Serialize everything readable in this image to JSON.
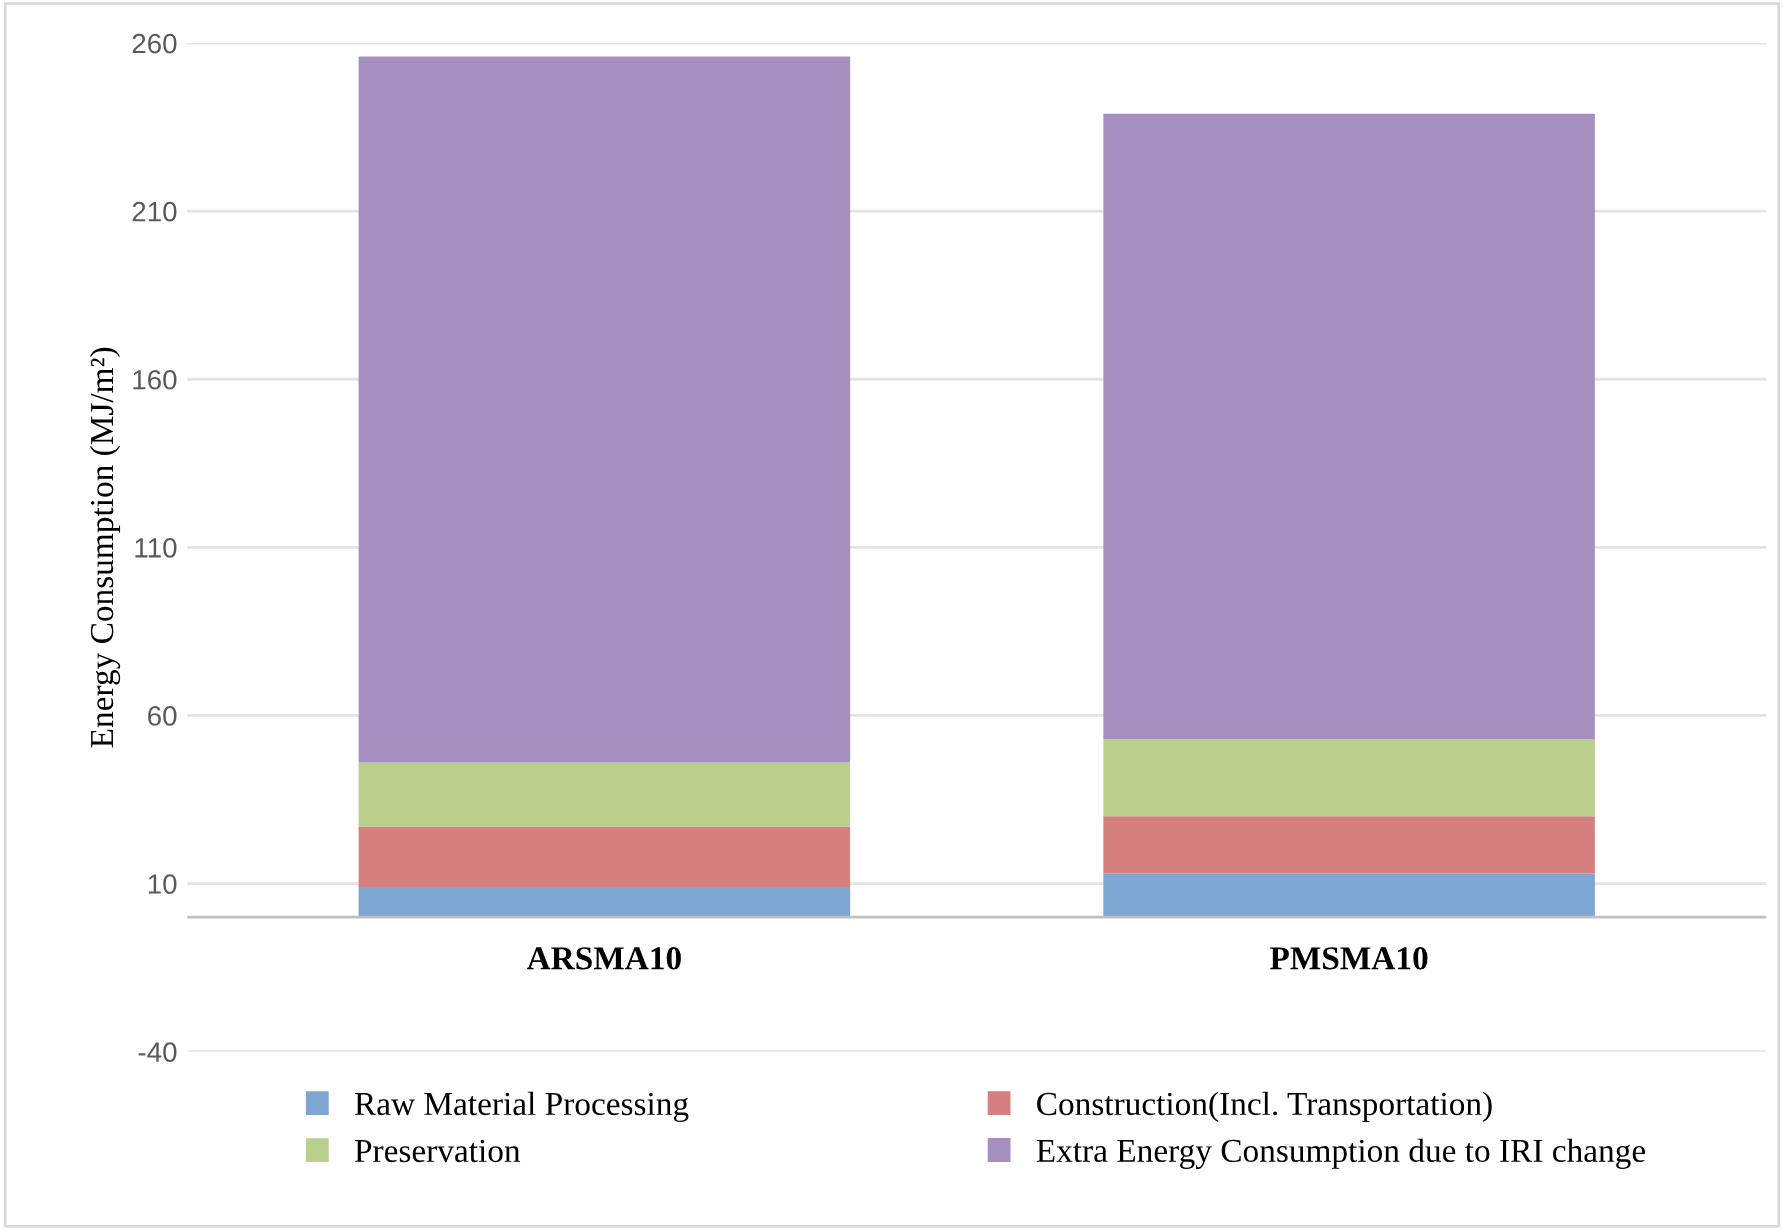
{
  "chart_data": {
    "type": "bar",
    "stacked": true,
    "ylabel": "Energy Consumption (MJ/m²)",
    "categories": [
      "ARSMA10",
      "PMSMA10"
    ],
    "series": [
      {
        "name": "Raw Material Processing",
        "color": "#7ea6d3",
        "values": [
          9,
          13
        ]
      },
      {
        "name": "Construction(Incl. Transportation)",
        "color": "#d5807e",
        "values": [
          18,
          17
        ]
      },
      {
        "name": "Preservation",
        "color": "#b9cf8b",
        "values": [
          19,
          23
        ]
      },
      {
        "name": "Extra Energy Consumption due to IRI change",
        "color": "#a48fbe",
        "values": [
          210,
          186
        ]
      }
    ],
    "ylim": [
      -40,
      260
    ],
    "yticks": [
      -40,
      10,
      60,
      110,
      160,
      210,
      260
    ],
    "grid": "y",
    "legend": "bottom"
  }
}
